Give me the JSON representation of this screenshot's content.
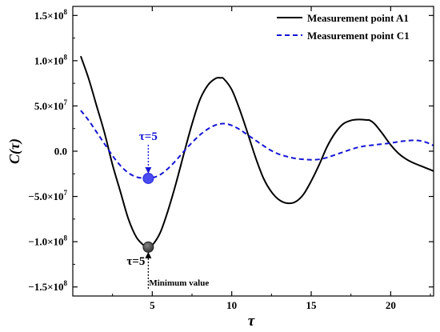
{
  "chart_data": {
    "type": "line",
    "xlabel": "τ",
    "ylabel": "C(τ)",
    "xlim": [
      0,
      22.7
    ],
    "ylim": [
      -160000000,
      160000000
    ],
    "x_ticks": [
      {
        "value": 5,
        "label": "5"
      },
      {
        "value": 10,
        "label": "10"
      },
      {
        "value": 15,
        "label": "15"
      },
      {
        "value": 20,
        "label": "20"
      }
    ],
    "y_ticks": [
      {
        "value": 150000000,
        "mant": "1.5×10",
        "exp": "8"
      },
      {
        "value": 100000000,
        "mant": "1.0×10",
        "exp": "8"
      },
      {
        "value": 50000000,
        "mant": "5.0×10",
        "exp": "7"
      },
      {
        "value": 0,
        "mant": "0.0",
        "exp": ""
      },
      {
        "value": -50000000,
        "mant": "−5.0×10",
        "exp": "7"
      },
      {
        "value": -100000000,
        "mant": "−1.0×10",
        "exp": "8"
      },
      {
        "value": -150000000,
        "mant": "−1.5×10",
        "exp": "8"
      }
    ],
    "grid": false,
    "legend_position": "top-right",
    "series": [
      {
        "name": "Measurement point A1",
        "color": "#000000",
        "dash": "solid",
        "x": [
          0.5,
          1,
          1.5,
          2,
          2.5,
          3,
          3.5,
          4,
          4.5,
          4.75,
          5,
          5.5,
          6,
          6.5,
          7,
          7.5,
          8,
          8.5,
          9,
          9.3,
          9.5,
          10,
          10.5,
          11,
          11.5,
          12,
          12.5,
          13,
          13.5,
          14,
          14.5,
          15,
          15.5,
          16,
          16.5,
          17,
          17.5,
          18,
          18.5,
          18.7,
          19,
          19.5,
          20,
          20.5,
          21,
          21.5,
          22,
          22.5,
          22.7
        ],
        "y": [
          105000000,
          80000000,
          50000000,
          20000000,
          -15000000,
          -45000000,
          -75000000,
          -95000000,
          -104500000,
          -106000000,
          -104000000,
          -90000000,
          -65000000,
          -35000000,
          -2000000,
          30000000,
          57000000,
          73000000,
          80500000,
          81000000,
          80000000,
          68000000,
          46000000,
          20000000,
          -7000000,
          -30000000,
          -45000000,
          -54000000,
          -57500000,
          -56000000,
          -48000000,
          -33000000,
          -15000000,
          5000000,
          20000000,
          30000000,
          34000000,
          35000000,
          34500000,
          34000000,
          30000000,
          19000000,
          7000000,
          -2500000,
          -9000000,
          -13500000,
          -17000000,
          -20500000,
          -22000000
        ]
      },
      {
        "name": "Measurement point C1",
        "color": "#1515d4",
        "dash": "dashed",
        "x": [
          0.5,
          1,
          1.5,
          2,
          2.5,
          3,
          3.5,
          4,
          4.5,
          4.75,
          5,
          5.5,
          6,
          6.5,
          7,
          7.5,
          8,
          8.5,
          9,
          9.5,
          10,
          10.5,
          11,
          11.5,
          12,
          12.5,
          13,
          13.5,
          14,
          14.5,
          15,
          15.5,
          16,
          16.5,
          17,
          17.5,
          18,
          18.5,
          19,
          19.5,
          20,
          20.5,
          21,
          21.5,
          22,
          22.5,
          22.7
        ],
        "y": [
          45000000,
          34000000,
          21000000,
          8000000,
          -5000000,
          -16000000,
          -24000000,
          -28500000,
          -30000000,
          -30000000,
          -29500000,
          -26000000,
          -19000000,
          -10000000,
          0,
          9500000,
          18000000,
          24500000,
          29000000,
          30500000,
          28500000,
          24000000,
          18000000,
          12000000,
          6000000,
          500000,
          -3500000,
          -6000000,
          -8000000,
          -9000000,
          -9500000,
          -9000000,
          -7000000,
          -4000000,
          -1000000,
          2000000,
          4500000,
          6000000,
          7000000,
          8000000,
          9000000,
          10500000,
          11500000,
          12000000,
          11000000,
          8000000,
          6000000
        ]
      }
    ],
    "markers": [
      {
        "series": "Measurement point C1",
        "x": 4.75,
        "y": -30000000,
        "color": "#4b4bf2"
      },
      {
        "series": "Measurement point A1",
        "x": 4.75,
        "y": -106000000,
        "color": "#555555"
      }
    ],
    "annotations": {
      "c1_tau": {
        "text": "τ=5",
        "color": "#1515d4"
      },
      "a1_tau": {
        "text": "τ=5",
        "color": "#000000"
      },
      "minimum": {
        "text": "Minimum value",
        "color": "#000000"
      }
    }
  }
}
